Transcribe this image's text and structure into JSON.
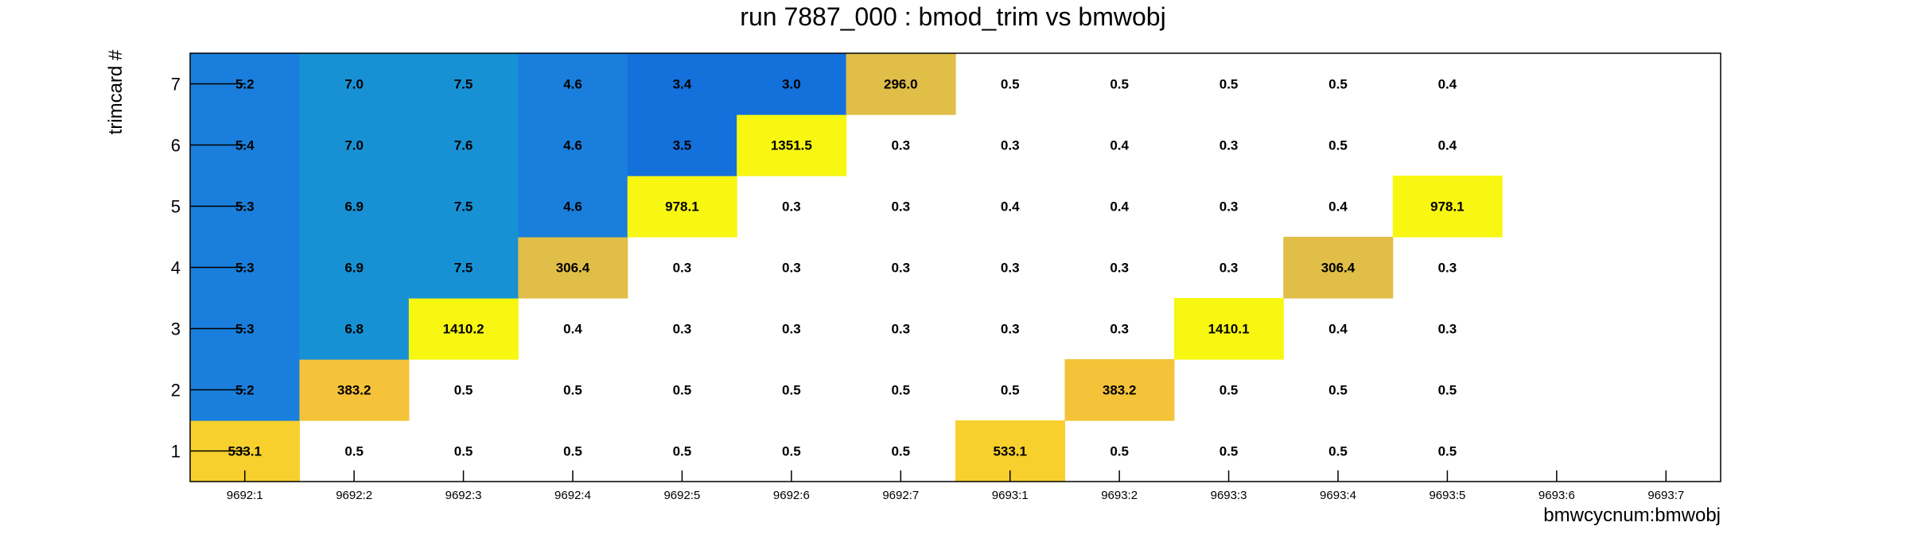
{
  "chart_data": {
    "type": "heatmap",
    "title": "run 7887_000 : bmod_trim vs bmwobj",
    "xlabel": "bmwcycnum:bmwobj",
    "ylabel": "trimcard #",
    "x_categories": [
      "9692:1",
      "9692:2",
      "9692:3",
      "9692:4",
      "9692:5",
      "9692:6",
      "9692:7",
      "9693:1",
      "9693:2",
      "9693:3",
      "9693:4",
      "9693:5",
      "9693:6",
      "9693:7"
    ],
    "y_categories": [
      "1",
      "2",
      "3",
      "4",
      "5",
      "6",
      "7"
    ],
    "y_labels": [
      "7",
      "6",
      "5",
      "4",
      "3",
      "2",
      "1"
    ],
    "colors": {
      "low_blue": "#1a7fdc",
      "mid_blue": "#1791d4",
      "deep_blue": "#1470db",
      "gold": "#e0be48",
      "amber": "#f5c33a",
      "yellow_orange": "#f8d02e",
      "bright_yellow": "#f7f712"
    },
    "cells": [
      {
        "x": "9692:1",
        "y": "1",
        "value": "533.1",
        "color": "#f8d02e"
      },
      {
        "x": "9692:1",
        "y": "2",
        "value": "5.2",
        "color": "#1a7fdc"
      },
      {
        "x": "9692:1",
        "y": "3",
        "value": "5.3",
        "color": "#1a7fdc"
      },
      {
        "x": "9692:1",
        "y": "4",
        "value": "5.3",
        "color": "#1a7fdc"
      },
      {
        "x": "9692:1",
        "y": "5",
        "value": "5.3",
        "color": "#1a7fdc"
      },
      {
        "x": "9692:1",
        "y": "6",
        "value": "5.4",
        "color": "#1a7fdc"
      },
      {
        "x": "9692:1",
        "y": "7",
        "value": "5.2",
        "color": "#1a7fdc"
      },
      {
        "x": "9692:2",
        "y": "1",
        "value": "0.5",
        "color": null
      },
      {
        "x": "9692:2",
        "y": "2",
        "value": "383.2",
        "color": "#f5c33a"
      },
      {
        "x": "9692:2",
        "y": "3",
        "value": "6.8",
        "color": "#1791d4"
      },
      {
        "x": "9692:2",
        "y": "4",
        "value": "6.9",
        "color": "#1791d4"
      },
      {
        "x": "9692:2",
        "y": "5",
        "value": "6.9",
        "color": "#1791d4"
      },
      {
        "x": "9692:2",
        "y": "6",
        "value": "7.0",
        "color": "#1791d4"
      },
      {
        "x": "9692:2",
        "y": "7",
        "value": "7.0",
        "color": "#1791d4"
      },
      {
        "x": "9692:3",
        "y": "1",
        "value": "0.5",
        "color": null
      },
      {
        "x": "9692:3",
        "y": "2",
        "value": "0.5",
        "color": null
      },
      {
        "x": "9692:3",
        "y": "3",
        "value": "1410.2",
        "color": "#f7f712"
      },
      {
        "x": "9692:3",
        "y": "4",
        "value": "7.5",
        "color": "#1791d4"
      },
      {
        "x": "9692:3",
        "y": "5",
        "value": "7.5",
        "color": "#1791d4"
      },
      {
        "x": "9692:3",
        "y": "6",
        "value": "7.6",
        "color": "#1791d4"
      },
      {
        "x": "9692:3",
        "y": "7",
        "value": "7.5",
        "color": "#1791d4"
      },
      {
        "x": "9692:4",
        "y": "1",
        "value": "0.5",
        "color": null
      },
      {
        "x": "9692:4",
        "y": "2",
        "value": "0.5",
        "color": null
      },
      {
        "x": "9692:4",
        "y": "3",
        "value": "0.4",
        "color": null
      },
      {
        "x": "9692:4",
        "y": "4",
        "value": "306.4",
        "color": "#e0be48"
      },
      {
        "x": "9692:4",
        "y": "5",
        "value": "4.6",
        "color": "#1a7fdc"
      },
      {
        "x": "9692:4",
        "y": "6",
        "value": "4.6",
        "color": "#1a7fdc"
      },
      {
        "x": "9692:4",
        "y": "7",
        "value": "4.6",
        "color": "#1a7fdc"
      },
      {
        "x": "9692:5",
        "y": "1",
        "value": "0.5",
        "color": null
      },
      {
        "x": "9692:5",
        "y": "2",
        "value": "0.5",
        "color": null
      },
      {
        "x": "9692:5",
        "y": "3",
        "value": "0.3",
        "color": null
      },
      {
        "x": "9692:5",
        "y": "4",
        "value": "0.3",
        "color": null
      },
      {
        "x": "9692:5",
        "y": "5",
        "value": "978.1",
        "color": "#f7f712"
      },
      {
        "x": "9692:5",
        "y": "6",
        "value": "3.5",
        "color": "#1470db"
      },
      {
        "x": "9692:5",
        "y": "7",
        "value": "3.4",
        "color": "#1470db"
      },
      {
        "x": "9692:6",
        "y": "1",
        "value": "0.5",
        "color": null
      },
      {
        "x": "9692:6",
        "y": "2",
        "value": "0.5",
        "color": null
      },
      {
        "x": "9692:6",
        "y": "3",
        "value": "0.3",
        "color": null
      },
      {
        "x": "9692:6",
        "y": "4",
        "value": "0.3",
        "color": null
      },
      {
        "x": "9692:6",
        "y": "5",
        "value": "0.3",
        "color": null
      },
      {
        "x": "9692:6",
        "y": "6",
        "value": "1351.5",
        "color": "#f7f712"
      },
      {
        "x": "9692:6",
        "y": "7",
        "value": "3.0",
        "color": "#1470db"
      },
      {
        "x": "9692:7",
        "y": "1",
        "value": "0.5",
        "color": null
      },
      {
        "x": "9692:7",
        "y": "2",
        "value": "0.5",
        "color": null
      },
      {
        "x": "9692:7",
        "y": "3",
        "value": "0.3",
        "color": null
      },
      {
        "x": "9692:7",
        "y": "4",
        "value": "0.3",
        "color": null
      },
      {
        "x": "9692:7",
        "y": "5",
        "value": "0.3",
        "color": null
      },
      {
        "x": "9692:7",
        "y": "6",
        "value": "0.3",
        "color": null
      },
      {
        "x": "9692:7",
        "y": "7",
        "value": "296.0",
        "color": "#e0be48"
      },
      {
        "x": "9693:1",
        "y": "1",
        "value": "533.1",
        "color": "#f8d02e"
      },
      {
        "x": "9693:1",
        "y": "2",
        "value": "0.5",
        "color": null
      },
      {
        "x": "9693:1",
        "y": "3",
        "value": "0.3",
        "color": null
      },
      {
        "x": "9693:1",
        "y": "4",
        "value": "0.3",
        "color": null
      },
      {
        "x": "9693:1",
        "y": "5",
        "value": "0.4",
        "color": null
      },
      {
        "x": "9693:1",
        "y": "6",
        "value": "0.3",
        "color": null
      },
      {
        "x": "9693:1",
        "y": "7",
        "value": "0.5",
        "color": null
      },
      {
        "x": "9693:2",
        "y": "1",
        "value": "0.5",
        "color": null
      },
      {
        "x": "9693:2",
        "y": "2",
        "value": "383.2",
        "color": "#f5c33a"
      },
      {
        "x": "9693:2",
        "y": "3",
        "value": "0.3",
        "color": null
      },
      {
        "x": "9693:2",
        "y": "4",
        "value": "0.3",
        "color": null
      },
      {
        "x": "9693:2",
        "y": "5",
        "value": "0.4",
        "color": null
      },
      {
        "x": "9693:2",
        "y": "6",
        "value": "0.4",
        "color": null
      },
      {
        "x": "9693:2",
        "y": "7",
        "value": "0.5",
        "color": null
      },
      {
        "x": "9693:3",
        "y": "1",
        "value": "0.5",
        "color": null
      },
      {
        "x": "9693:3",
        "y": "2",
        "value": "0.5",
        "color": null
      },
      {
        "x": "9693:3",
        "y": "3",
        "value": "1410.1",
        "color": "#f7f712"
      },
      {
        "x": "9693:3",
        "y": "4",
        "value": "0.3",
        "color": null
      },
      {
        "x": "9693:3",
        "y": "5",
        "value": "0.3",
        "color": null
      },
      {
        "x": "9693:3",
        "y": "6",
        "value": "0.3",
        "color": null
      },
      {
        "x": "9693:3",
        "y": "7",
        "value": "0.5",
        "color": null
      },
      {
        "x": "9693:4",
        "y": "1",
        "value": "0.5",
        "color": null
      },
      {
        "x": "9693:4",
        "y": "2",
        "value": "0.5",
        "color": null
      },
      {
        "x": "9693:4",
        "y": "3",
        "value": "0.4",
        "color": null
      },
      {
        "x": "9693:4",
        "y": "4",
        "value": "306.4",
        "color": "#e0be48"
      },
      {
        "x": "9693:4",
        "y": "5",
        "value": "0.4",
        "color": null
      },
      {
        "x": "9693:4",
        "y": "6",
        "value": "0.5",
        "color": null
      },
      {
        "x": "9693:4",
        "y": "7",
        "value": "0.5",
        "color": null
      },
      {
        "x": "9693:5",
        "y": "1",
        "value": "0.5",
        "color": null
      },
      {
        "x": "9693:5",
        "y": "2",
        "value": "0.5",
        "color": null
      },
      {
        "x": "9693:5",
        "y": "3",
        "value": "0.3",
        "color": null
      },
      {
        "x": "9693:5",
        "y": "4",
        "value": "0.3",
        "color": null
      },
      {
        "x": "9693:5",
        "y": "5",
        "value": "978.1",
        "color": "#f7f712"
      },
      {
        "x": "9693:5",
        "y": "6",
        "value": "0.4",
        "color": null
      },
      {
        "x": "9693:5",
        "y": "7",
        "value": "0.4",
        "color": null
      }
    ]
  }
}
